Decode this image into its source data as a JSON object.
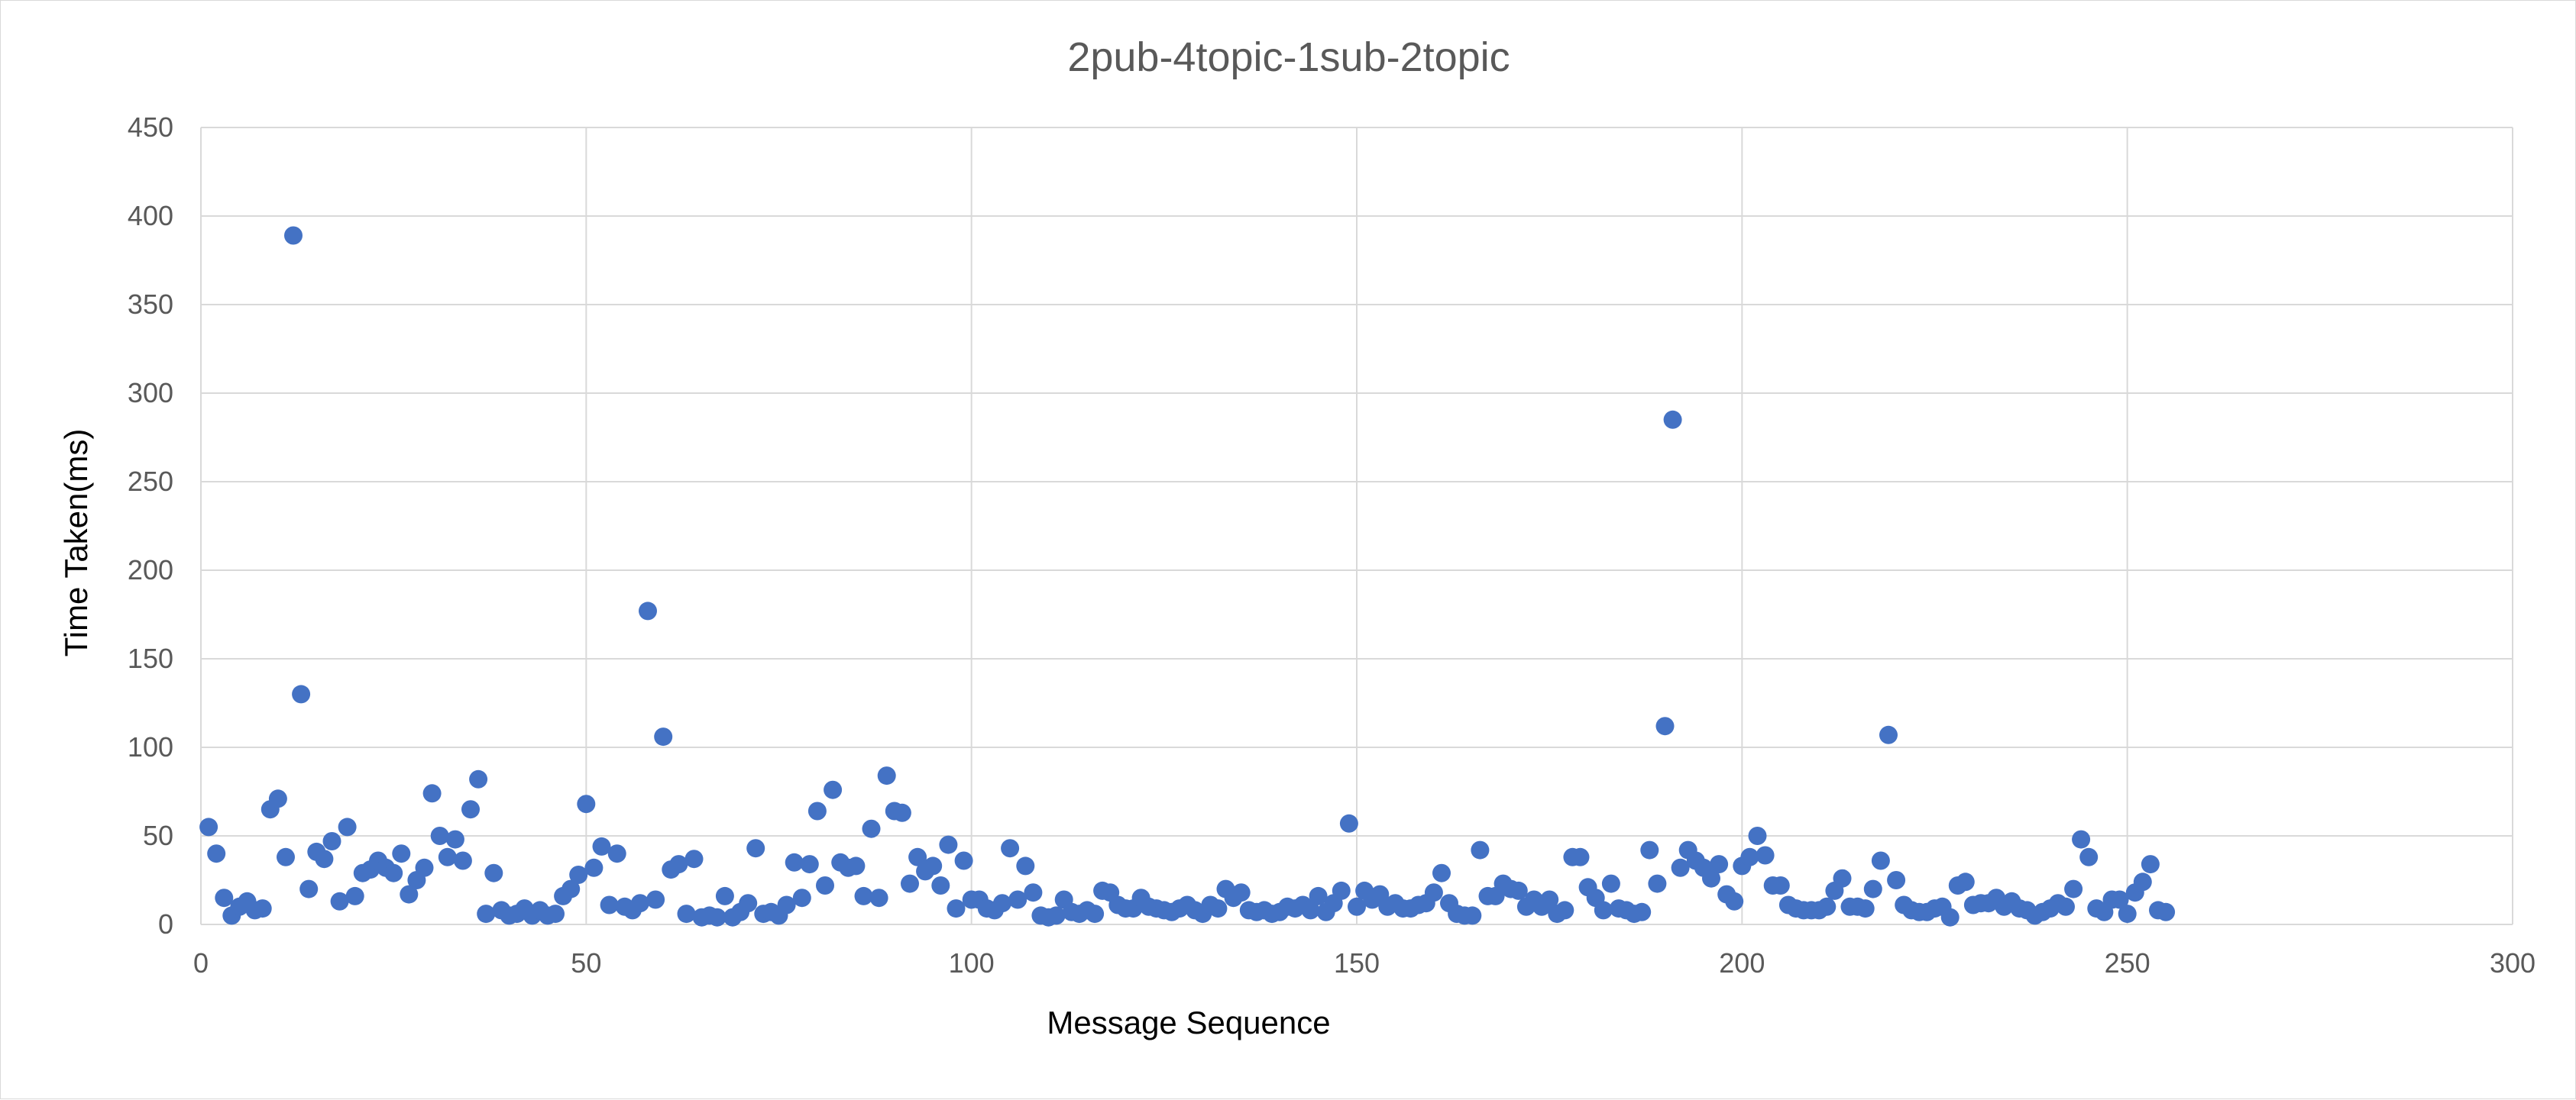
{
  "chart_data": {
    "type": "scatter",
    "title": "2pub-4topic-1sub-2topic",
    "xlabel": "Message Sequence",
    "ylabel": "Time Taken(ms)",
    "xlim": [
      0,
      300
    ],
    "ylim": [
      0,
      450
    ],
    "x_ticks": [
      "0",
      "50",
      "100",
      "150",
      "200",
      "250",
      "300"
    ],
    "y_ticks": [
      "0",
      "50",
      "100",
      "150",
      "200",
      "250",
      "300",
      "350",
      "400",
      "450"
    ],
    "grid": true,
    "legend": "none",
    "colors": {
      "marker": "#4472c4",
      "grid": "#d9d9d9",
      "title": "#595959",
      "ticks": "#595959"
    },
    "points": [
      [
        1,
        55
      ],
      [
        2,
        40
      ],
      [
        3,
        15
      ],
      [
        4,
        5
      ],
      [
        5,
        10
      ],
      [
        6,
        13
      ],
      [
        7,
        8
      ],
      [
        8,
        9
      ],
      [
        9,
        65
      ],
      [
        10,
        71
      ],
      [
        11,
        38
      ],
      [
        12,
        389
      ],
      [
        13,
        130
      ],
      [
        14,
        20
      ],
      [
        15,
        41
      ],
      [
        16,
        37
      ],
      [
        17,
        47
      ],
      [
        18,
        13
      ],
      [
        19,
        55
      ],
      [
        20,
        16
      ],
      [
        21,
        29
      ],
      [
        22,
        31
      ],
      [
        23,
        36
      ],
      [
        24,
        32
      ],
      [
        25,
        29
      ],
      [
        26,
        40
      ],
      [
        27,
        17
      ],
      [
        28,
        25
      ],
      [
        29,
        32
      ],
      [
        30,
        74
      ],
      [
        31,
        50
      ],
      [
        32,
        38
      ],
      [
        33,
        48
      ],
      [
        34,
        36
      ],
      [
        35,
        65
      ],
      [
        36,
        82
      ],
      [
        37,
        6
      ],
      [
        38,
        29
      ],
      [
        39,
        8
      ],
      [
        40,
        5
      ],
      [
        41,
        6
      ],
      [
        42,
        9
      ],
      [
        43,
        5
      ],
      [
        44,
        8
      ],
      [
        45,
        5
      ],
      [
        46,
        6
      ],
      [
        47,
        16
      ],
      [
        48,
        20
      ],
      [
        49,
        28
      ],
      [
        50,
        68
      ],
      [
        51,
        32
      ],
      [
        52,
        44
      ],
      [
        53,
        11
      ],
      [
        54,
        40
      ],
      [
        55,
        10
      ],
      [
        56,
        8
      ],
      [
        57,
        12
      ],
      [
        58,
        177
      ],
      [
        59,
        14
      ],
      [
        60,
        106
      ],
      [
        61,
        31
      ],
      [
        62,
        34
      ],
      [
        63,
        6
      ],
      [
        64,
        37
      ],
      [
        65,
        4
      ],
      [
        66,
        5
      ],
      [
        67,
        4
      ],
      [
        68,
        16
      ],
      [
        69,
        4
      ],
      [
        70,
        7
      ],
      [
        71,
        12
      ],
      [
        72,
        43
      ],
      [
        73,
        6
      ],
      [
        74,
        7
      ],
      [
        75,
        5
      ],
      [
        76,
        11
      ],
      [
        77,
        35
      ],
      [
        78,
        15
      ],
      [
        79,
        34
      ],
      [
        80,
        64
      ],
      [
        81,
        22
      ],
      [
        82,
        76
      ],
      [
        83,
        35
      ],
      [
        84,
        32
      ],
      [
        85,
        33
      ],
      [
        86,
        16
      ],
      [
        87,
        54
      ],
      [
        88,
        15
      ],
      [
        89,
        84
      ],
      [
        90,
        64
      ],
      [
        91,
        63
      ],
      [
        92,
        23
      ],
      [
        93,
        38
      ],
      [
        94,
        30
      ],
      [
        95,
        33
      ],
      [
        96,
        22
      ],
      [
        97,
        45
      ],
      [
        98,
        9
      ],
      [
        99,
        36
      ],
      [
        100,
        14
      ],
      [
        101,
        14
      ],
      [
        102,
        9
      ],
      [
        103,
        8
      ],
      [
        104,
        12
      ],
      [
        105,
        43
      ],
      [
        106,
        14
      ],
      [
        107,
        33
      ],
      [
        108,
        18
      ],
      [
        109,
        5
      ],
      [
        110,
        4
      ],
      [
        111,
        5
      ],
      [
        112,
        14
      ],
      [
        113,
        7
      ],
      [
        114,
        6
      ],
      [
        115,
        8
      ],
      [
        116,
        6
      ],
      [
        117,
        19
      ],
      [
        118,
        18
      ],
      [
        119,
        11
      ],
      [
        120,
        9
      ],
      [
        121,
        9
      ],
      [
        122,
        15
      ],
      [
        123,
        10
      ],
      [
        124,
        9
      ],
      [
        125,
        8
      ],
      [
        126,
        7
      ],
      [
        127,
        9
      ],
      [
        128,
        11
      ],
      [
        129,
        8
      ],
      [
        130,
        6
      ],
      [
        131,
        11
      ],
      [
        132,
        9
      ],
      [
        133,
        20
      ],
      [
        134,
        15
      ],
      [
        135,
        18
      ],
      [
        136,
        8
      ],
      [
        137,
        7
      ],
      [
        138,
        8
      ],
      [
        139,
        6
      ],
      [
        140,
        7
      ],
      [
        141,
        10
      ],
      [
        142,
        9
      ],
      [
        143,
        11
      ],
      [
        144,
        8
      ],
      [
        145,
        16
      ],
      [
        146,
        7
      ],
      [
        147,
        12
      ],
      [
        148,
        19
      ],
      [
        149,
        57
      ],
      [
        150,
        10
      ],
      [
        151,
        19
      ],
      [
        152,
        14
      ],
      [
        153,
        17
      ],
      [
        154,
        10
      ],
      [
        155,
        12
      ],
      [
        156,
        9
      ],
      [
        157,
        9
      ],
      [
        158,
        11
      ],
      [
        159,
        12
      ],
      [
        160,
        18
      ],
      [
        161,
        29
      ],
      [
        162,
        12
      ],
      [
        163,
        6
      ],
      [
        164,
        5
      ],
      [
        165,
        5
      ],
      [
        166,
        42
      ],
      [
        167,
        16
      ],
      [
        168,
        16
      ],
      [
        169,
        23
      ],
      [
        170,
        20
      ],
      [
        171,
        19
      ],
      [
        172,
        10
      ],
      [
        173,
        14
      ],
      [
        174,
        10
      ],
      [
        175,
        14
      ],
      [
        176,
        6
      ],
      [
        177,
        8
      ],
      [
        178,
        38
      ],
      [
        179,
        38
      ],
      [
        180,
        21
      ],
      [
        181,
        15
      ],
      [
        182,
        8
      ],
      [
        183,
        23
      ],
      [
        184,
        9
      ],
      [
        185,
        8
      ],
      [
        186,
        6
      ],
      [
        187,
        7
      ],
      [
        188,
        42
      ],
      [
        189,
        23
      ],
      [
        190,
        112
      ],
      [
        191,
        285
      ],
      [
        192,
        32
      ],
      [
        193,
        42
      ],
      [
        194,
        36
      ],
      [
        195,
        32
      ],
      [
        196,
        26
      ],
      [
        197,
        34
      ],
      [
        198,
        17
      ],
      [
        199,
        13
      ],
      [
        200,
        33
      ],
      [
        201,
        38
      ],
      [
        202,
        50
      ],
      [
        203,
        39
      ],
      [
        204,
        22
      ],
      [
        205,
        22
      ],
      [
        206,
        11
      ],
      [
        207,
        9
      ],
      [
        208,
        8
      ],
      [
        209,
        8
      ],
      [
        210,
        8
      ],
      [
        211,
        10
      ],
      [
        212,
        19
      ],
      [
        213,
        26
      ],
      [
        214,
        10
      ],
      [
        215,
        10
      ],
      [
        216,
        9
      ],
      [
        217,
        20
      ],
      [
        218,
        36
      ],
      [
        219,
        107
      ],
      [
        220,
        25
      ],
      [
        221,
        11
      ],
      [
        222,
        8
      ],
      [
        223,
        7
      ],
      [
        224,
        7
      ],
      [
        225,
        9
      ],
      [
        226,
        10
      ],
      [
        227,
        4
      ],
      [
        228,
        22
      ],
      [
        229,
        24
      ],
      [
        230,
        11
      ],
      [
        231,
        12
      ],
      [
        232,
        12
      ],
      [
        233,
        15
      ],
      [
        234,
        10
      ],
      [
        235,
        13
      ],
      [
        236,
        9
      ],
      [
        237,
        8
      ],
      [
        238,
        5
      ],
      [
        239,
        7
      ],
      [
        240,
        9
      ],
      [
        241,
        12
      ],
      [
        242,
        10
      ],
      [
        243,
        20
      ],
      [
        244,
        48
      ],
      [
        245,
        38
      ],
      [
        246,
        9
      ],
      [
        247,
        7
      ],
      [
        248,
        14
      ],
      [
        249,
        14
      ],
      [
        250,
        6
      ],
      [
        251,
        18
      ],
      [
        252,
        24
      ],
      [
        253,
        34
      ],
      [
        254,
        8
      ],
      [
        255,
        7
      ]
    ]
  }
}
